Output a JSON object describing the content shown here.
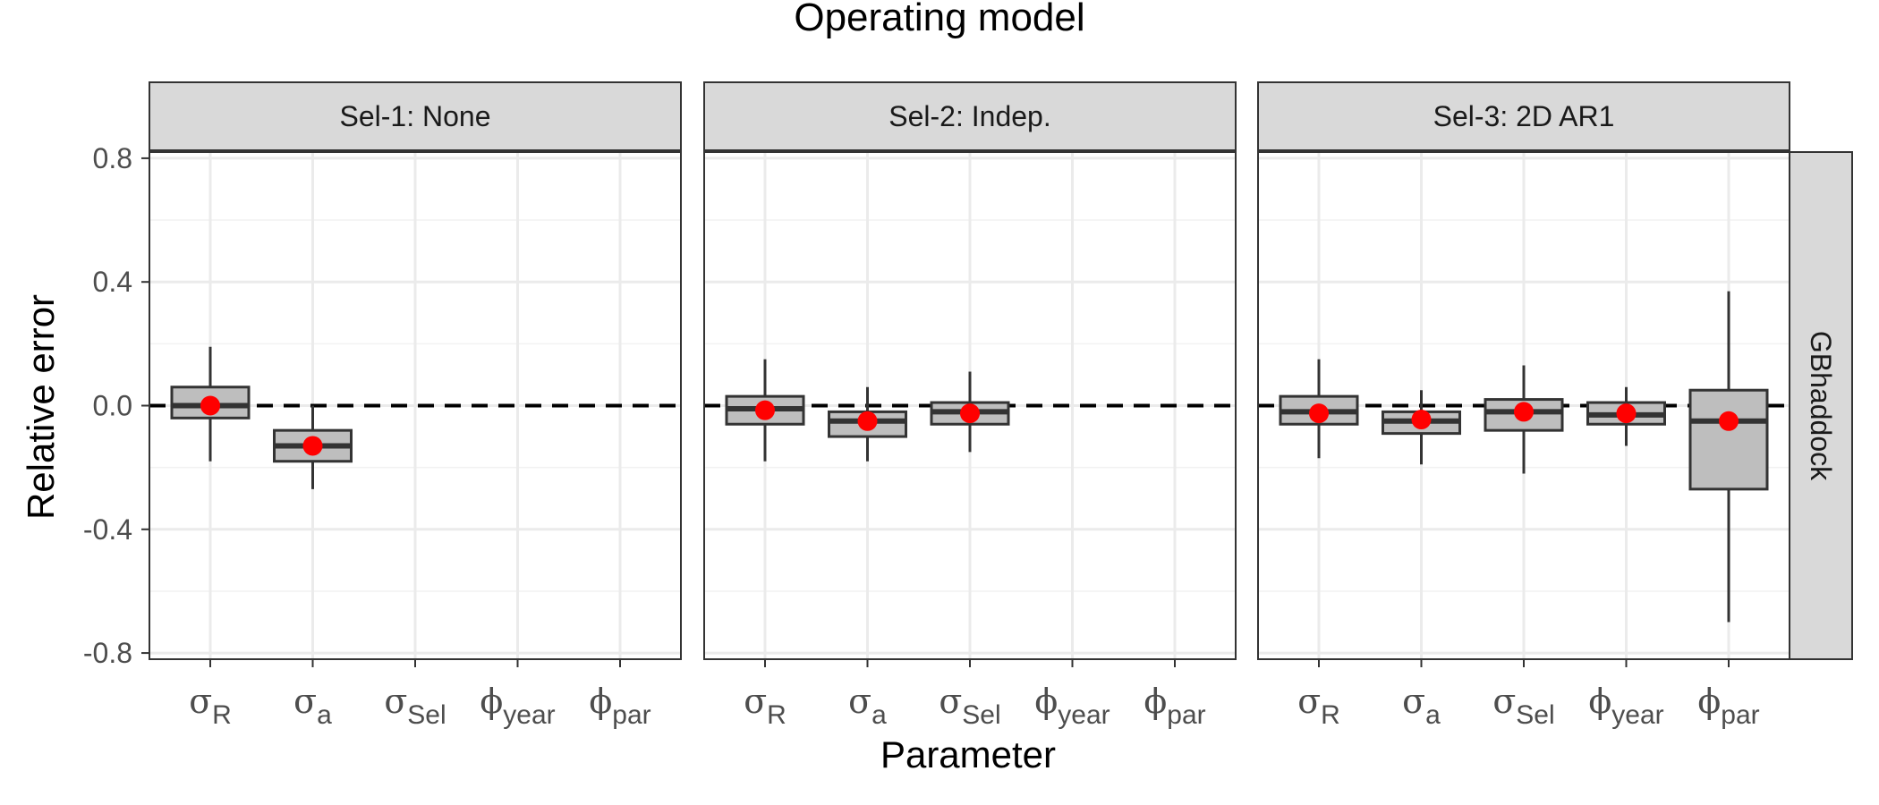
{
  "chart_data": {
    "type": "box",
    "title": "Operating model",
    "xlabel": "Parameter",
    "ylabel": "Relative error",
    "ylim": [
      -0.82,
      0.82
    ],
    "yticks": [
      "0.8",
      "0.4",
      "0.0",
      "-0.4",
      "-0.8"
    ],
    "ytick_values": [
      0.8,
      0.4,
      0.0,
      -0.4,
      -0.8
    ],
    "reference_line": 0.0,
    "grid": true,
    "colors": {
      "box_fill": "#bebebe",
      "box_line": "#333333",
      "point": "#ff0000",
      "strip": "#d9d9d9"
    },
    "row_strip": "GBhaddock",
    "categories": [
      {
        "sym": "σ",
        "sub": "R"
      },
      {
        "sym": "σ",
        "sub": "a"
      },
      {
        "sym": "σ",
        "sub": "Sel"
      },
      {
        "sym": "ϕ",
        "sub": "year"
      },
      {
        "sym": "ϕ",
        "sub": "par"
      }
    ],
    "panels": [
      {
        "label": "Sel-1:  None",
        "boxes": [
          {
            "cat": 0,
            "whisker_low": -0.18,
            "q1": -0.04,
            "median": 0.0,
            "q3": 0.06,
            "whisker_high": 0.19,
            "mean": 0.0
          },
          {
            "cat": 1,
            "whisker_low": -0.27,
            "q1": -0.18,
            "median": -0.13,
            "q3": -0.08,
            "whisker_high": 0.0,
            "mean": -0.13
          }
        ]
      },
      {
        "label": "Sel-2:  Indep.",
        "boxes": [
          {
            "cat": 0,
            "whisker_low": -0.18,
            "q1": -0.06,
            "median": -0.01,
            "q3": 0.03,
            "whisker_high": 0.15,
            "mean": -0.015
          },
          {
            "cat": 1,
            "whisker_low": -0.18,
            "q1": -0.1,
            "median": -0.05,
            "q3": -0.02,
            "whisker_high": 0.06,
            "mean": -0.05
          },
          {
            "cat": 2,
            "whisker_low": -0.15,
            "q1": -0.06,
            "median": -0.02,
            "q3": 0.01,
            "whisker_high": 0.11,
            "mean": -0.025
          }
        ]
      },
      {
        "label": "Sel-3:  2D  AR1",
        "boxes": [
          {
            "cat": 0,
            "whisker_low": -0.17,
            "q1": -0.06,
            "median": -0.02,
            "q3": 0.03,
            "whisker_high": 0.15,
            "mean": -0.025
          },
          {
            "cat": 1,
            "whisker_low": -0.19,
            "q1": -0.09,
            "median": -0.05,
            "q3": -0.02,
            "whisker_high": 0.05,
            "mean": -0.045
          },
          {
            "cat": 2,
            "whisker_low": -0.22,
            "q1": -0.08,
            "median": -0.02,
            "q3": 0.02,
            "whisker_high": 0.13,
            "mean": -0.02
          },
          {
            "cat": 3,
            "whisker_low": -0.13,
            "q1": -0.06,
            "median": -0.03,
            "q3": 0.01,
            "whisker_high": 0.06,
            "mean": -0.025
          },
          {
            "cat": 4,
            "whisker_low": -0.7,
            "q1": -0.27,
            "median": -0.05,
            "q3": 0.05,
            "whisker_high": 0.37,
            "mean": -0.05
          }
        ]
      }
    ]
  }
}
